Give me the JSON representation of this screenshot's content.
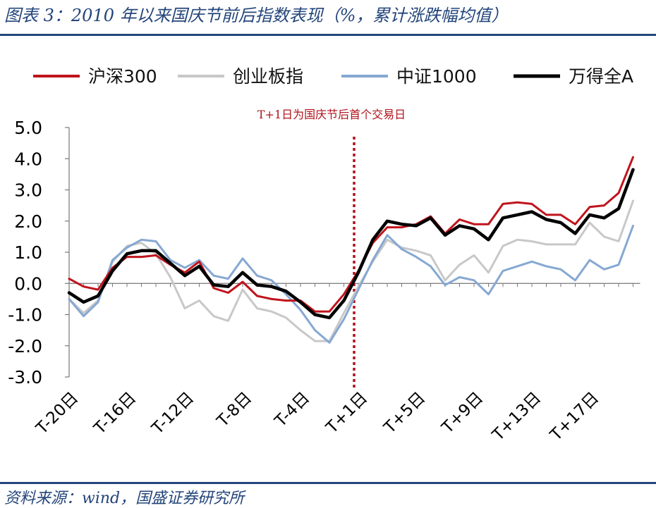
{
  "title": "图表 3：2010 年以来国庆节前后指数表现（%，累计涨跌幅均值）",
  "source": "资料来源：wind，国盛证券研究所",
  "chart_data": {
    "type": "line",
    "title": "2010 年以来国庆节前后指数表现（%，累计涨跌幅均值）",
    "annotation": "T+1日为国庆节后首个交易日",
    "ylim": [
      -3.0,
      5.0
    ],
    "yticks": [
      5.0,
      4.0,
      3.0,
      2.0,
      1.0,
      0.0,
      -1.0,
      -2.0,
      -3.0
    ],
    "ytick_labels": [
      "5.0",
      "4.0",
      "3.0",
      "2.0",
      "1.0",
      "0.0",
      "-1.0",
      "-2.0",
      "-3.0"
    ],
    "categories": [
      "T-20日",
      "T-19日",
      "T-18日",
      "T-17日",
      "T-16日",
      "T-15日",
      "T-14日",
      "T-13日",
      "T-12日",
      "T-11日",
      "T-10日",
      "T-9日",
      "T-8日",
      "T-7日",
      "T-6日",
      "T-5日",
      "T-4日",
      "T-3日",
      "T-2日",
      "T-1日",
      "T+1日",
      "T+2日",
      "T+3日",
      "T+4日",
      "T+5日",
      "T+6日",
      "T+7日",
      "T+8日",
      "T+9日",
      "T+10日",
      "T+11日",
      "T+12日",
      "T+13日",
      "T+14日",
      "T+15日",
      "T+16日",
      "T+17日",
      "T+18日",
      "T+19日",
      "T+20日"
    ],
    "x_tick_labels": [
      "T-20日",
      "T-16日",
      "T-12日",
      "T-8日",
      "T-4日",
      "T+1日",
      "T+5日",
      "T+9日",
      "T+13日",
      "T+17日"
    ],
    "series": [
      {
        "name": "沪深300",
        "color": "#c0141c",
        "values": [
          0.15,
          -0.1,
          -0.2,
          0.5,
          0.85,
          0.85,
          0.9,
          0.6,
          0.35,
          0.7,
          -0.15,
          -0.3,
          0.05,
          -0.4,
          -0.5,
          -0.55,
          -0.55,
          -0.9,
          -0.9,
          -0.35,
          0.4,
          1.3,
          1.8,
          1.8,
          1.9,
          2.15,
          1.6,
          2.05,
          1.9,
          1.9,
          2.55,
          2.6,
          2.55,
          2.2,
          2.2,
          1.9,
          2.45,
          2.5,
          2.9,
          4.05
        ]
      },
      {
        "name": "创业板指",
        "color": "#c8c8c8",
        "values": [
          -0.5,
          -0.95,
          -0.55,
          0.7,
          1.2,
          1.3,
          0.95,
          0.2,
          -0.8,
          -0.55,
          -1.05,
          -1.2,
          -0.2,
          -0.8,
          -0.9,
          -1.1,
          -1.5,
          -1.85,
          -1.85,
          -0.95,
          -0.1,
          0.7,
          1.4,
          1.15,
          1.05,
          0.9,
          0.1,
          0.6,
          0.9,
          0.35,
          1.2,
          1.4,
          1.35,
          1.25,
          1.25,
          1.25,
          1.95,
          1.5,
          1.35,
          2.65
        ]
      },
      {
        "name": "中证1000",
        "color": "#86a8d2",
        "values": [
          -0.5,
          -1.05,
          -0.6,
          0.75,
          1.15,
          1.4,
          1.35,
          0.75,
          0.5,
          0.75,
          0.25,
          0.15,
          0.8,
          0.25,
          0.1,
          -0.35,
          -0.85,
          -1.5,
          -1.9,
          -1.15,
          -0.2,
          0.75,
          1.55,
          1.1,
          0.85,
          0.55,
          -0.05,
          0.2,
          0.1,
          -0.35,
          0.4,
          0.55,
          0.7,
          0.55,
          0.45,
          0.1,
          0.75,
          0.45,
          0.6,
          1.85
        ]
      },
      {
        "name": "万得全A",
        "color": "#000000",
        "values": [
          -0.3,
          -0.6,
          -0.4,
          0.4,
          0.95,
          1.05,
          1.05,
          0.65,
          0.25,
          0.55,
          -0.05,
          -0.1,
          0.35,
          -0.05,
          -0.1,
          -0.25,
          -0.6,
          -1.0,
          -1.1,
          -0.55,
          0.35,
          1.4,
          2.0,
          1.9,
          1.85,
          2.1,
          1.55,
          1.85,
          1.75,
          1.4,
          2.1,
          2.2,
          2.3,
          2.05,
          1.95,
          1.6,
          2.2,
          2.1,
          2.4,
          3.65
        ]
      }
    ]
  }
}
